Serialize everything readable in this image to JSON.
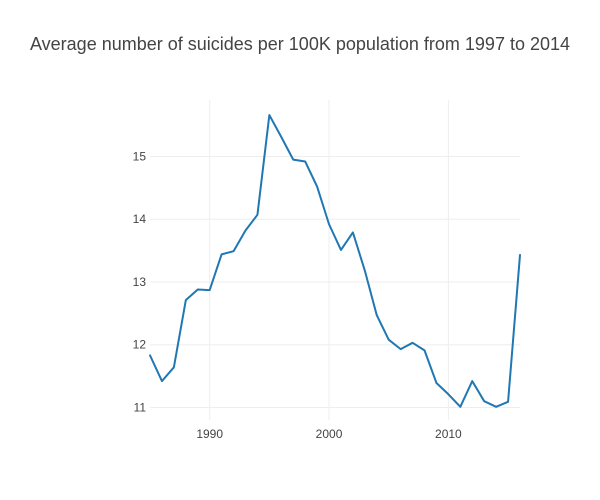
{
  "chart_data": {
    "type": "line",
    "title": "Average number of suicides per 100K population from 1997 to 2014",
    "xlabel": "",
    "ylabel": "",
    "xlim": [
      1985,
      2016
    ],
    "ylim": [
      10.8,
      15.9
    ],
    "x_ticks": [
      1990,
      2000,
      2010
    ],
    "y_ticks": [
      11,
      12,
      13,
      14,
      15
    ],
    "grid": true,
    "series": [
      {
        "color": "#1f77b4",
        "x": [
          1985,
          1986,
          1987,
          1988,
          1989,
          1990,
          1991,
          1992,
          1993,
          1994,
          1995,
          1996,
          1997,
          1998,
          1999,
          2000,
          2001,
          2002,
          2003,
          2004,
          2005,
          2006,
          2007,
          2008,
          2009,
          2010,
          2011,
          2012,
          2013,
          2014,
          2015,
          2016
        ],
        "y": [
          11.83,
          11.42,
          11.64,
          12.71,
          12.88,
          12.87,
          13.44,
          13.49,
          13.82,
          14.07,
          15.66,
          15.31,
          14.95,
          14.92,
          14.52,
          13.92,
          13.51,
          13.79,
          13.18,
          12.47,
          12.08,
          11.93,
          12.03,
          11.91,
          11.39,
          11.21,
          11.01,
          11.42,
          11.1,
          11.01,
          11.09,
          13.43
        ]
      }
    ]
  }
}
